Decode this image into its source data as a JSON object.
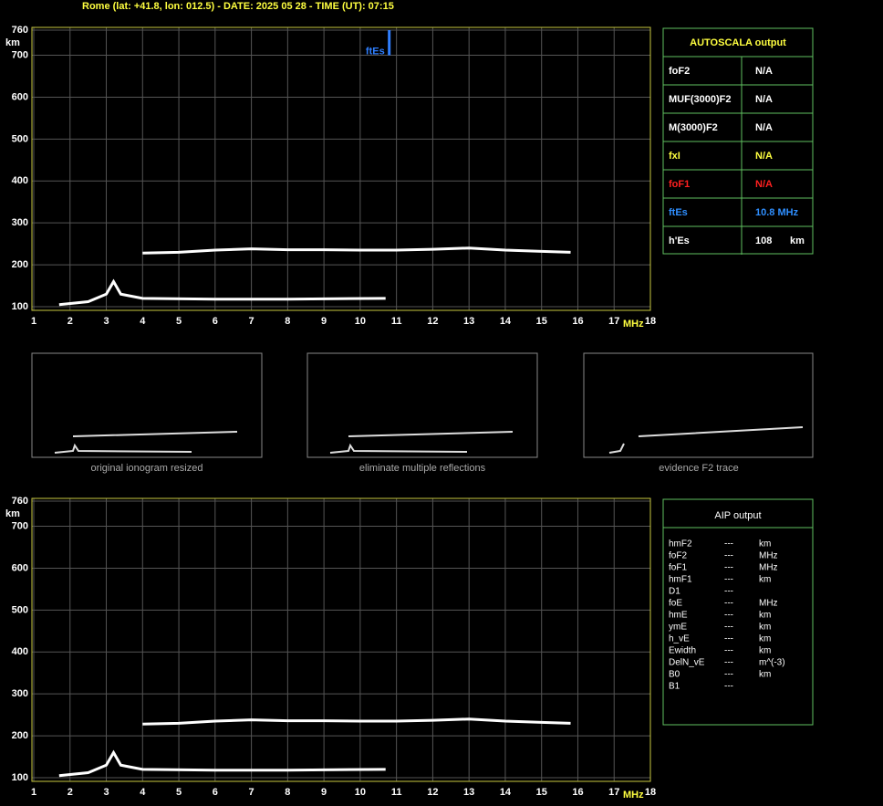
{
  "header": {
    "title": "Rome (lat: +41.8, lon: 012.5) - DATE: 2025 05 28 - TIME (UT): 07:15"
  },
  "chart_data": [
    {
      "type": "line",
      "x_label": "MHz",
      "y_label": "km",
      "xlim": [
        1,
        18
      ],
      "ylim": [
        100,
        760
      ],
      "xticks": [
        1,
        2,
        3,
        4,
        5,
        6,
        7,
        8,
        9,
        10,
        11,
        12,
        13,
        14,
        15,
        16,
        17,
        18
      ],
      "yticks": [
        100,
        200,
        300,
        400,
        500,
        600,
        700,
        760
      ],
      "grid": true,
      "grid_color": "#555555",
      "frame_color": "#c8c840",
      "series": [
        {
          "color": "#ffffff",
          "x": [
            1.7,
            2.5,
            3.0,
            3.2,
            3.4,
            4,
            6,
            8,
            10.7
          ],
          "values": [
            105,
            112,
            130,
            160,
            130,
            120,
            118,
            118,
            120
          ]
        },
        {
          "color": "#ffffff",
          "x": [
            4,
            5,
            6,
            7,
            8,
            9,
            10,
            11,
            12,
            13,
            14,
            15,
            15.8
          ],
          "values": [
            228,
            230,
            235,
            238,
            236,
            236,
            235,
            235,
            237,
            240,
            235,
            232,
            230
          ]
        }
      ],
      "annotation": {
        "text": "ftEs",
        "x": 10.8,
        "y": [
          700,
          760
        ],
        "color": "#2f7fff"
      }
    },
    {
      "type": "line",
      "x_label": "MHz",
      "y_label": "km",
      "xlim": [
        1,
        18
      ],
      "ylim": [
        100,
        760
      ],
      "xticks": [
        1,
        2,
        3,
        4,
        5,
        6,
        7,
        8,
        9,
        10,
        11,
        12,
        13,
        14,
        15,
        16,
        17,
        18
      ],
      "yticks": [
        100,
        200,
        300,
        400,
        500,
        600,
        700,
        760
      ],
      "grid": true,
      "grid_color": "#555555",
      "frame_color": "#c8c840",
      "series": [
        {
          "color": "#ffffff",
          "x": [
            1.7,
            2.5,
            3.0,
            3.2,
            3.4,
            4,
            6,
            8,
            10.7
          ],
          "values": [
            105,
            112,
            130,
            160,
            130,
            120,
            118,
            118,
            120
          ]
        },
        {
          "color": "#ffffff",
          "x": [
            4,
            5,
            6,
            7,
            8,
            9,
            10,
            11,
            12,
            13,
            14,
            15,
            15.8
          ],
          "values": [
            228,
            230,
            235,
            238,
            236,
            236,
            235,
            235,
            237,
            240,
            235,
            232,
            230
          ]
        }
      ]
    }
  ],
  "autoscala": {
    "title": "AUTOSCALA output",
    "rows": [
      {
        "label": "foF2",
        "value": "N/A",
        "color": "#ffffff"
      },
      {
        "label": "MUF(3000)F2",
        "value": "N/A",
        "color": "#ffffff"
      },
      {
        "label": "M(3000)F2",
        "value": "N/A",
        "color": "#ffffff"
      },
      {
        "label": "fxI",
        "value": "N/A",
        "color": "#ffff40"
      },
      {
        "label": "foF1",
        "value": "N/A",
        "color": "#ff2020"
      },
      {
        "label": "ftEs",
        "value": "10.8 MHz",
        "color": "#2f8fff"
      },
      {
        "label": "h'Es",
        "value": "108",
        "unit": "km",
        "color": "#ffffff"
      }
    ]
  },
  "thumbnails": [
    "original ionogram resized",
    "eliminate multiple reflections",
    "evidence F2 trace"
  ],
  "aip": {
    "title": "AIP output",
    "rows": [
      [
        "hmF2",
        "---",
        "km"
      ],
      [
        "foF2",
        "---",
        "MHz"
      ],
      [
        "foF1",
        "---",
        "MHz"
      ],
      [
        "hmF1",
        "---",
        "km"
      ],
      [
        "D1",
        "---"
      ],
      [
        "foE",
        "---",
        "MHz"
      ],
      [
        "hmE",
        "---",
        "km"
      ],
      [
        "ymE",
        "---",
        "km"
      ],
      [
        "h_vE",
        "---",
        "km"
      ],
      [
        "Ewidth",
        "---",
        "km"
      ],
      [
        "DelN_vE",
        "---",
        "m^(-3)"
      ],
      [
        "B0",
        "---",
        "km"
      ],
      [
        "B1",
        "---"
      ]
    ]
  }
}
